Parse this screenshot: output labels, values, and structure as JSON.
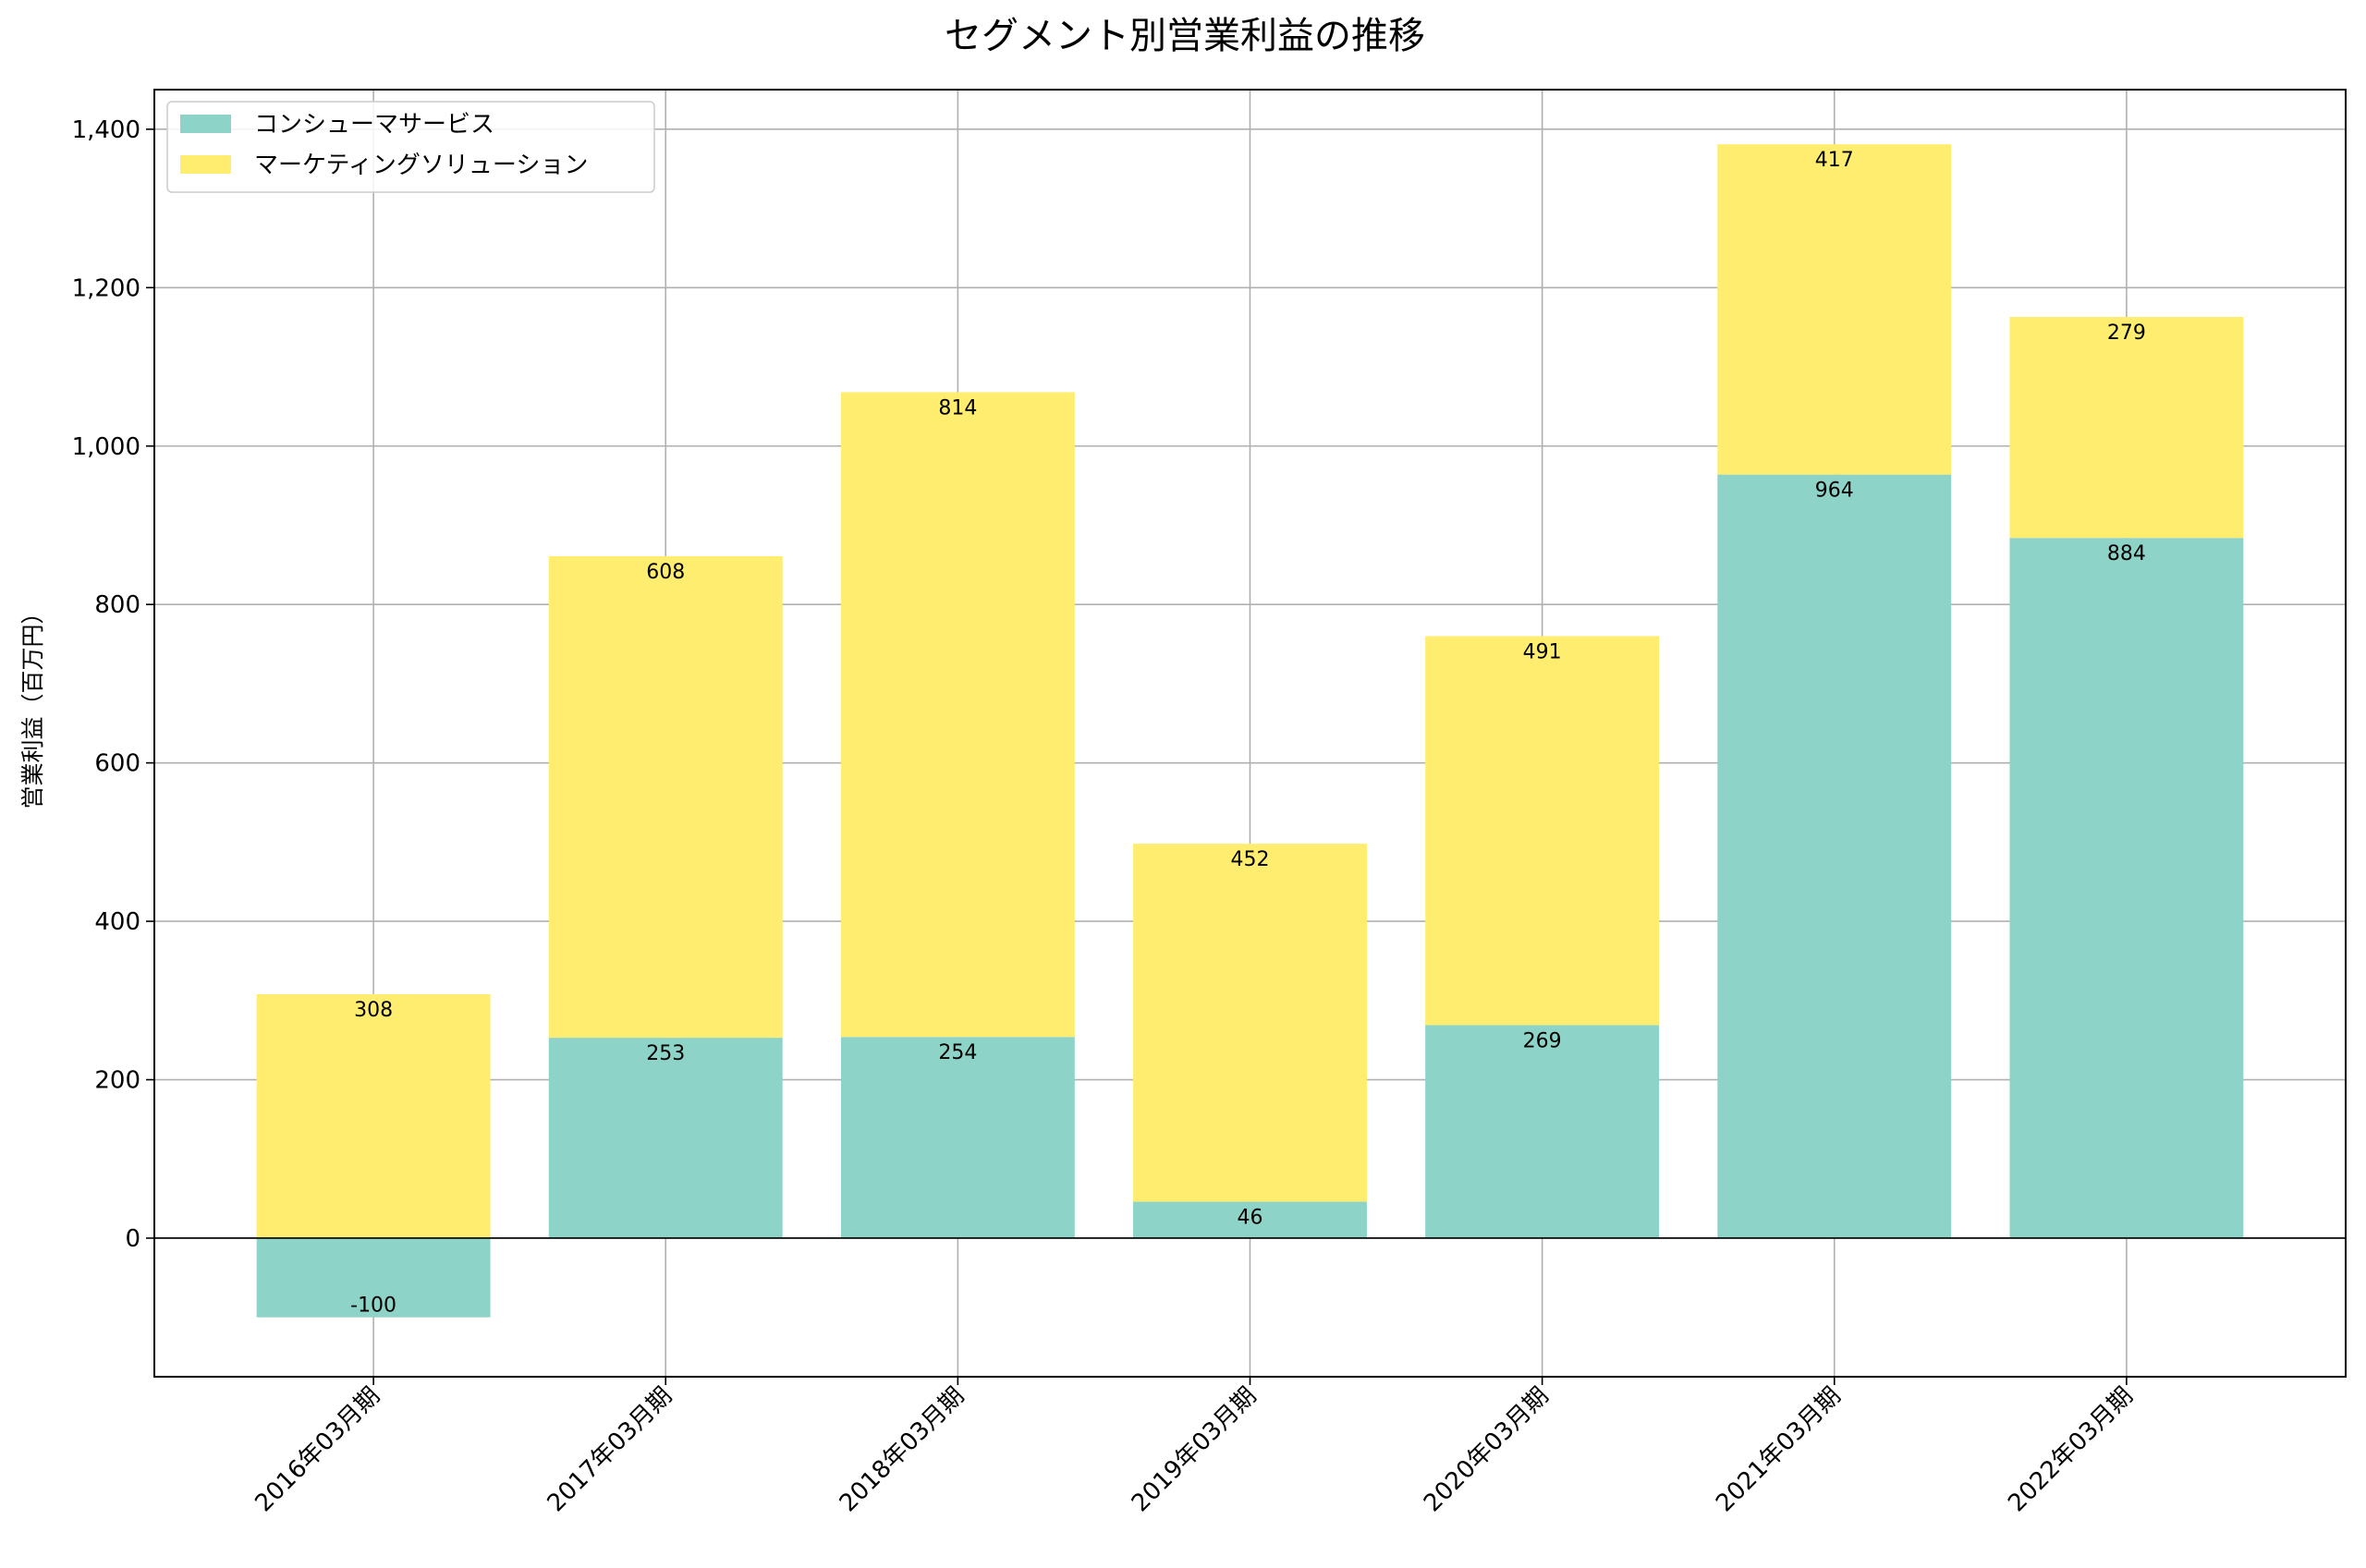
{
  "chart_data": {
    "type": "bar",
    "stacked": true,
    "title": "セグメント別営業利益の推移",
    "xlabel": "",
    "ylabel": "営業利益（百万円）",
    "categories": [
      "2016年03月期",
      "2017年03月期",
      "2018年03月期",
      "2019年03月期",
      "2020年03月期",
      "2021年03月期",
      "2022年03月期"
    ],
    "series": [
      {
        "name": "コンシューマサービス",
        "values": [
          -100,
          253,
          254,
          46,
          269,
          964,
          884
        ],
        "color": "#8dd3c7"
      },
      {
        "name": "マーケティングソリューション",
        "values": [
          308,
          608,
          814,
          452,
          491,
          417,
          279
        ],
        "color": "#ffed6f"
      }
    ],
    "ylim": [
      -175,
      1450
    ],
    "yticks": [
      0,
      200,
      400,
      600,
      800,
      1000,
      1200,
      1400
    ],
    "ytick_labels": [
      "0",
      "200",
      "400",
      "600",
      "800",
      "1,000",
      "1,200",
      "1,400"
    ],
    "grid": true,
    "legend_position": "top-left"
  }
}
